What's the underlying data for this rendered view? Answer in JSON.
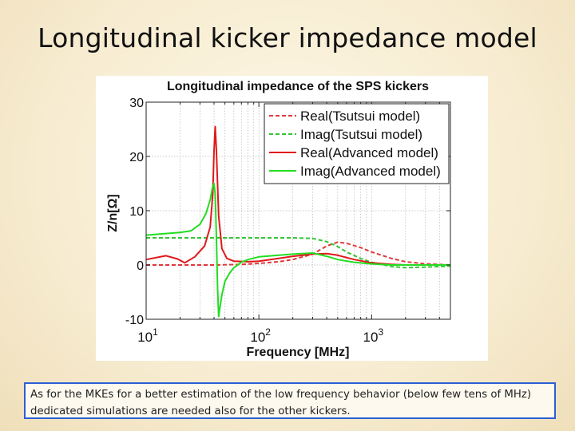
{
  "slide": {
    "title": "Longitudinal kicker impedance model",
    "caption": "As for the MKEs for a better estimation of the low frequency behavior (below few tens of MHz) dedicated simulations are needed also for the other kickers."
  },
  "chart_data": {
    "type": "line",
    "title": "Longitudinal impedance of the SPS kickers",
    "xlabel": "Frequency [MHz]",
    "ylabel": "Z/n[Ω]",
    "xscale": "log",
    "xlim": [
      10,
      5000
    ],
    "ylim": [
      -10,
      30
    ],
    "grid": true,
    "legend_position": "top-right",
    "x_ticks": [
      {
        "value": 10,
        "base": "10",
        "exp": "1"
      },
      {
        "value": 100,
        "base": "10",
        "exp": "2"
      },
      {
        "value": 1000,
        "base": "10",
        "exp": "3"
      }
    ],
    "y_ticks": [
      {
        "value": -10,
        "label": "-10"
      },
      {
        "value": 0,
        "label": "0"
      },
      {
        "value": 10,
        "label": "10"
      },
      {
        "value": 20,
        "label": "20"
      },
      {
        "value": 30,
        "label": "30"
      }
    ],
    "series": [
      {
        "name": "Real(Tsutsui model)",
        "color": "#e0383a",
        "dash": true,
        "x": [
          10,
          20,
          40,
          70,
          100,
          150,
          200,
          300,
          400,
          500,
          600,
          800,
          1000,
          1500,
          2000,
          3000,
          5000
        ],
        "y": [
          0.0,
          0.0,
          0.0,
          0.1,
          0.3,
          0.6,
          1.0,
          2.0,
          3.5,
          4.2,
          4.0,
          3.2,
          2.4,
          1.2,
          0.6,
          0.2,
          0.0
        ]
      },
      {
        "name": "Imag(Tsutsui model)",
        "color": "#35c535",
        "dash": true,
        "x": [
          10,
          20,
          40,
          70,
          100,
          150,
          200,
          300,
          400,
          500,
          600,
          800,
          1000,
          1500,
          2000,
          3000,
          5000
        ],
        "y": [
          5.0,
          5.0,
          5.0,
          5.0,
          5.0,
          5.0,
          5.0,
          4.9,
          4.3,
          3.4,
          2.4,
          1.2,
          0.5,
          -0.3,
          -0.5,
          -0.4,
          -0.2
        ]
      },
      {
        "name": "Real(Advanced model)",
        "color": "#e0181a",
        "dash": false,
        "x": [
          10,
          15,
          19,
          22,
          27,
          33,
          37,
          39,
          40,
          41,
          42,
          44,
          47,
          52,
          60,
          80,
          100,
          150,
          200,
          300,
          400,
          500,
          700,
          1000,
          1500,
          2000,
          3000,
          5000
        ],
        "y": [
          1.0,
          1.7,
          1.1,
          0.4,
          1.5,
          3.5,
          7.0,
          13.0,
          21.0,
          25.5,
          21.0,
          9.0,
          3.0,
          1.2,
          0.7,
          0.6,
          0.7,
          1.2,
          1.6,
          2.0,
          2.1,
          1.8,
          1.0,
          0.4,
          0.1,
          0.0,
          0.0,
          0.0
        ]
      },
      {
        "name": "Imag(Advanced model)",
        "color": "#22dd22",
        "dash": false,
        "x": [
          10,
          15,
          20,
          25,
          30,
          34,
          37,
          39,
          40,
          41,
          42,
          43,
          44,
          45,
          47,
          50,
          55,
          60,
          70,
          80,
          100,
          150,
          200,
          300,
          400,
          500,
          700,
          1000,
          1500,
          2000,
          3000,
          5000
        ],
        "y": [
          5.5,
          5.8,
          6.0,
          6.3,
          7.5,
          9.5,
          12.0,
          14.5,
          15.0,
          13.0,
          5.0,
          -4.0,
          -9.5,
          -8.0,
          -5.5,
          -3.0,
          -1.5,
          -0.5,
          0.5,
          1.0,
          1.5,
          1.8,
          2.0,
          2.2,
          1.6,
          1.0,
          0.5,
          0.2,
          0.0,
          0.0,
          0.0,
          0.0
        ]
      }
    ]
  }
}
